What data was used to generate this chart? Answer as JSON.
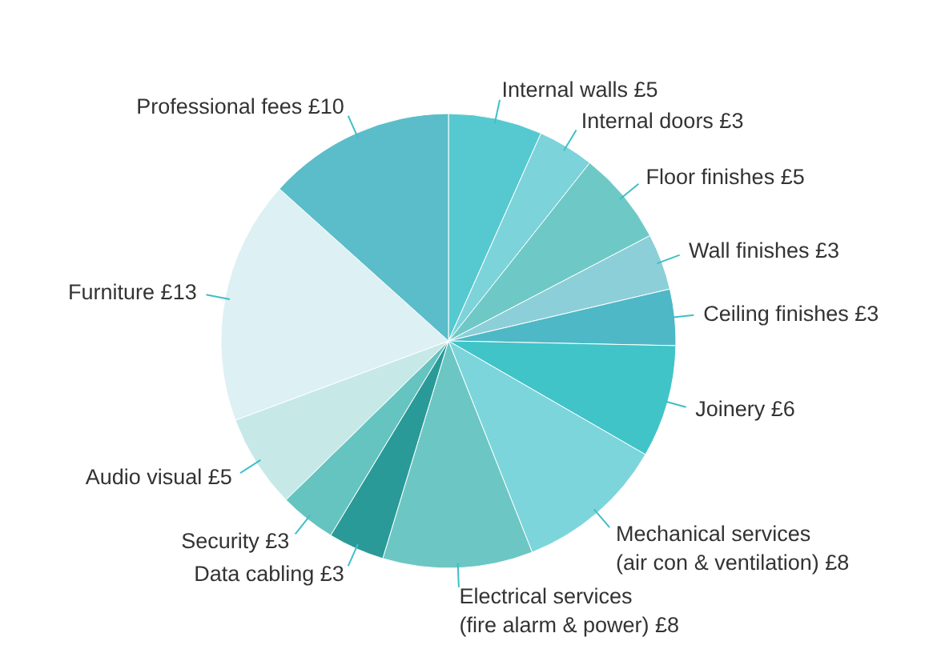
{
  "chart_data": {
    "type": "pie",
    "categories": [
      "Internal walls",
      "Internal doors",
      "Floor finishes",
      "Wall finishes",
      "Ceiling finishes",
      "Joinery",
      "Mechanical services\n(air con & ventilation)",
      "Electrical services\n(fire alarm & power)",
      "Data cabling",
      "Security",
      "Audio visual",
      "Furniture ",
      "Professional fees"
    ],
    "values": [
      5,
      3,
      5,
      3,
      3,
      6,
      8,
      8,
      3,
      3,
      5,
      13,
      10
    ],
    "value_labels": [
      "£5",
      "£3",
      "£5",
      "£3",
      "£3",
      "£6",
      "£8",
      "£8",
      "£3",
      "£3",
      "£5",
      "£13",
      "£10"
    ],
    "colors": [
      "#56c9d0",
      "#7dd3da",
      "#6ec9c6",
      "#8ccfd8",
      "#4fb8c6",
      "#40c4c8",
      "#7dd5dc",
      "#6cc7c4",
      "#2a9a98",
      "#66c4c0",
      "#c6e9e8",
      "#ddf0f3",
      "#5bbdc9"
    ]
  }
}
